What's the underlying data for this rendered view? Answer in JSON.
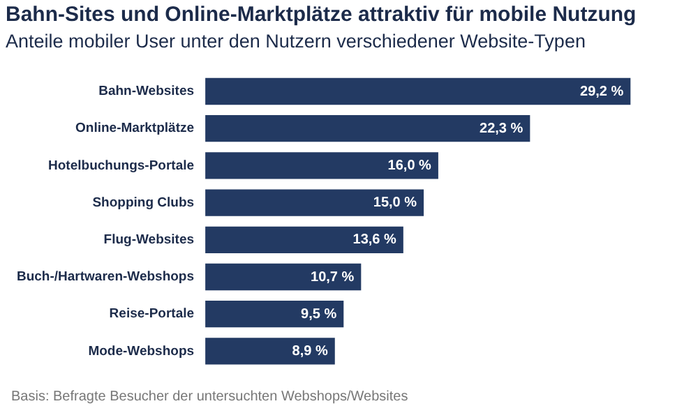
{
  "chart_data": {
    "type": "bar",
    "orientation": "horizontal",
    "title": "Bahn-Sites und Online-Marktplätze attraktiv für mobile Nutzung",
    "subtitle": "Anteile mobiler User unter den Nutzern verschiedener Website-Typen",
    "categories": [
      "Bahn-Websites",
      "Online-Marktplätze",
      "Hotelbuchungs-Portale",
      "Shopping Clubs",
      "Flug-Websites",
      "Buch-/Hartwaren-Webshops",
      "Reise-Portale",
      "Mode-Webshops"
    ],
    "values": [
      29.2,
      22.3,
      16.0,
      15.0,
      13.6,
      10.7,
      9.5,
      8.9
    ],
    "value_labels": [
      "29,2 %",
      "22,3 %",
      "16,0 %",
      "15,0 %",
      "13,6 %",
      "10,7 %",
      "9,5 %",
      "8,9 %"
    ],
    "color": "#233a63",
    "annotations": [
      "Basis: Befragte Besucher der untersuchten Webshops/Websites"
    ],
    "grid": false,
    "legend": false
  }
}
